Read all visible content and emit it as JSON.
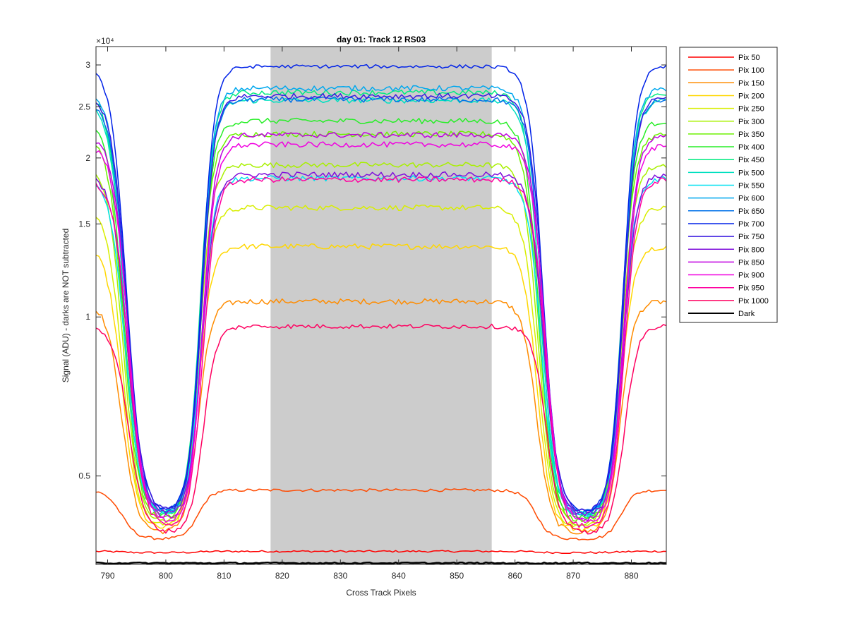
{
  "chart_data": {
    "type": "line",
    "title": "day 01: Track 12  RS03",
    "xlabel": "Cross Track Pixels",
    "ylabel": "Signal (ADU) - darks are NOT subtracted",
    "y_exponent_label": "×10⁴",
    "y_scale": "log",
    "xlim": [
      788,
      886
    ],
    "ylim": [
      3400,
      32500
    ],
    "x_ticks": [
      790,
      800,
      810,
      820,
      830,
      840,
      850,
      860,
      870,
      880
    ],
    "y_ticks": [
      {
        "value": 5000,
        "label": "0.5"
      },
      {
        "value": 10000,
        "label": "1"
      },
      {
        "value": 15000,
        "label": "1.5"
      },
      {
        "value": 20000,
        "label": "2"
      },
      {
        "value": 25000,
        "label": "2.5"
      },
      {
        "value": 30000,
        "label": "3"
      }
    ],
    "shaded_region": {
      "x_start": 818,
      "x_end": 856,
      "color": "#cccccc"
    },
    "legend_position": "outside-right",
    "series": [
      {
        "name": "Pix 50",
        "color": "#ff0000",
        "valley": 3580,
        "plateau": 3600,
        "noise": 0.004
      },
      {
        "name": "Pix 100",
        "color": "#ff4a00",
        "valley": 3800,
        "plateau": 4700,
        "noise": 0.006
      },
      {
        "name": "Pix 150",
        "color": "#ff8c00",
        "valley": 3900,
        "plateau": 10700,
        "noise": 0.012
      },
      {
        "name": "Pix 200",
        "color": "#ffd700",
        "valley": 3950,
        "plateau": 13600,
        "noise": 0.012
      },
      {
        "name": "Pix 250",
        "color": "#d8ee00",
        "valley": 4000,
        "plateau": 16100,
        "noise": 0.012
      },
      {
        "name": "Pix 300",
        "color": "#a8f000",
        "valley": 4050,
        "plateau": 19400,
        "noise": 0.012
      },
      {
        "name": "Pix 350",
        "color": "#6cf000",
        "valley": 4100,
        "plateau": 22200,
        "noise": 0.012
      },
      {
        "name": "Pix 400",
        "color": "#28ee28",
        "valley": 4150,
        "plateau": 23500,
        "noise": 0.012
      },
      {
        "name": "Pix 450",
        "color": "#00eb80",
        "valley": 4180,
        "plateau": 26600,
        "noise": 0.012
      },
      {
        "name": "Pix 500",
        "color": "#00e0c0",
        "valley": 4200,
        "plateau": 25700,
        "noise": 0.012
      },
      {
        "name": "Pix 550",
        "color": "#00e0f0",
        "valley": 4200,
        "plateau": 18300,
        "noise": 0.012
      },
      {
        "name": "Pix 600",
        "color": "#00a8ee",
        "valley": 4220,
        "plateau": 27100,
        "noise": 0.012
      },
      {
        "name": "Pix 650",
        "color": "#0070e8",
        "valley": 4240,
        "plateau": 25800,
        "noise": 0.012
      },
      {
        "name": "Pix 700",
        "color": "#0022e8",
        "valley": 4260,
        "plateau": 29800,
        "noise": 0.008
      },
      {
        "name": "Pix 750",
        "color": "#3a1ae0",
        "valley": 4260,
        "plateau": 26200,
        "noise": 0.012
      },
      {
        "name": "Pix 800",
        "color": "#8010dc",
        "valley": 4200,
        "plateau": 18600,
        "noise": 0.012
      },
      {
        "name": "Pix 850",
        "color": "#c000e0",
        "valley": 4120,
        "plateau": 22100,
        "noise": 0.012
      },
      {
        "name": "Pix 900",
        "color": "#f000e0",
        "valley": 4060,
        "plateau": 21200,
        "noise": 0.012
      },
      {
        "name": "Pix 950",
        "color": "#ff00a0",
        "valley": 3980,
        "plateau": 18200,
        "noise": 0.012
      },
      {
        "name": "Pix 1000",
        "color": "#ff0060",
        "valley": 3900,
        "plateau": 9600,
        "noise": 0.01
      },
      {
        "name": "Dark",
        "color": "#000000",
        "valley": 3420,
        "plateau": 3420,
        "noise": 0.003
      }
    ]
  }
}
